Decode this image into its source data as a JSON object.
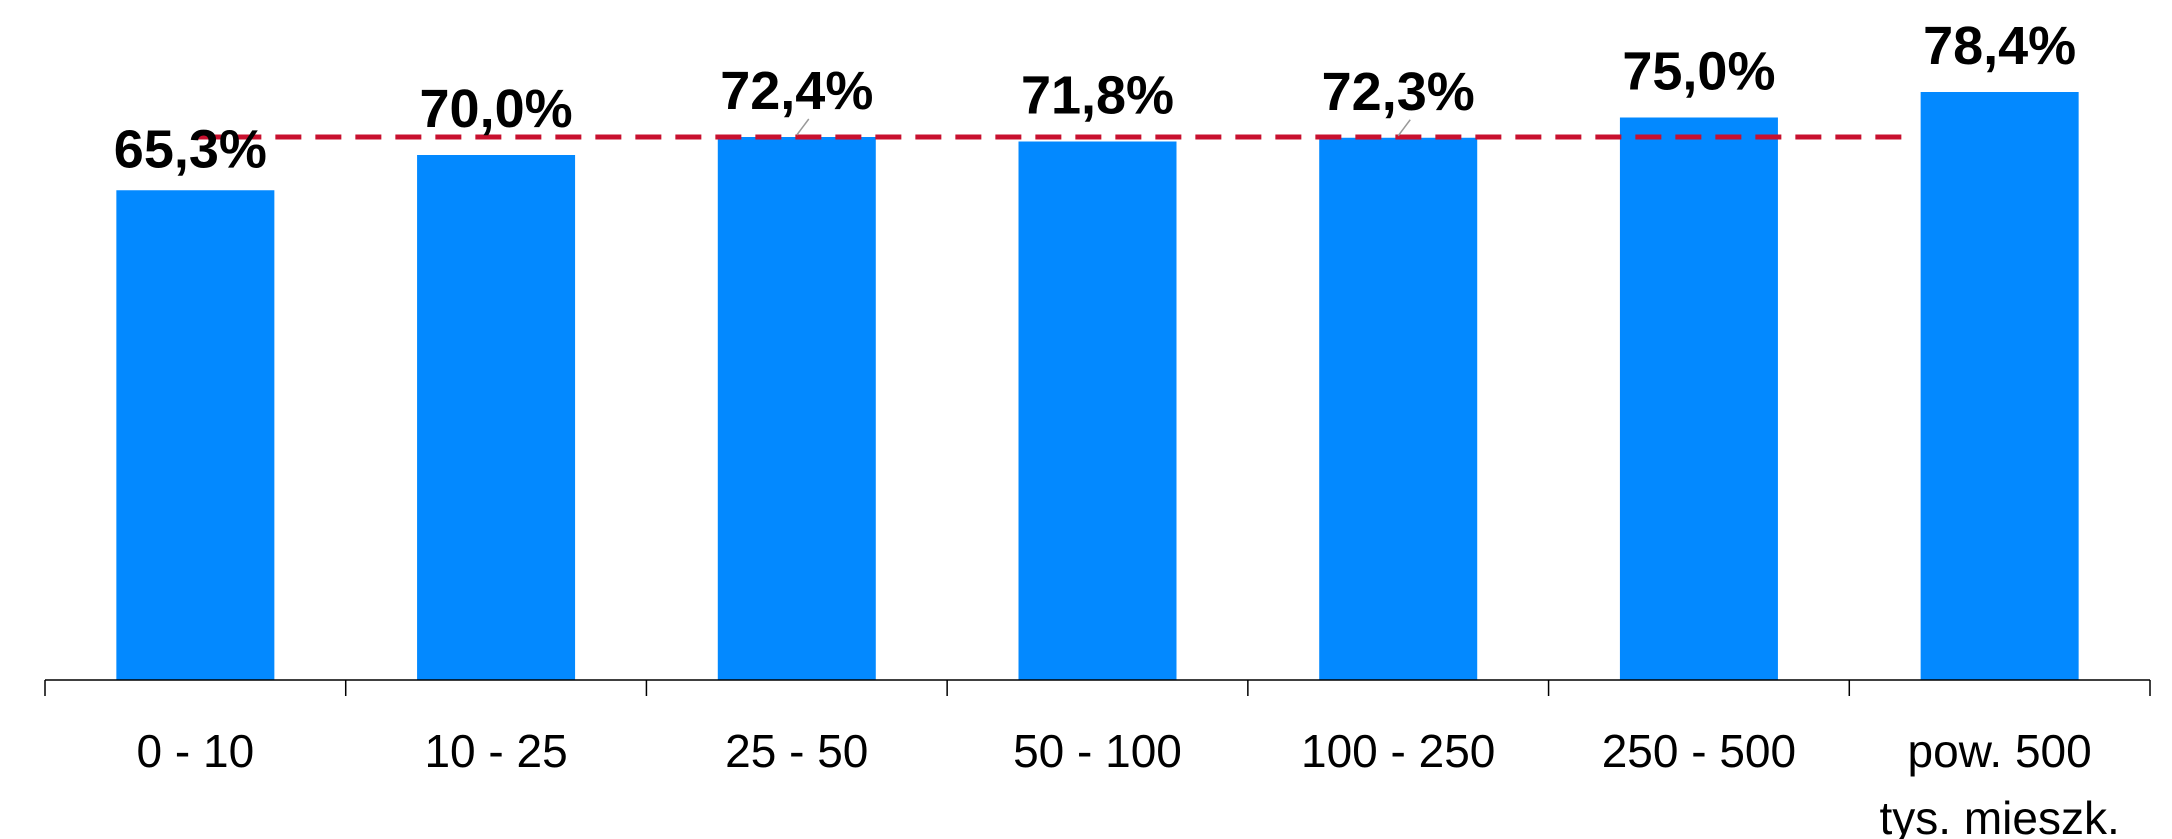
{
  "chart_data": {
    "type": "bar",
    "categories": [
      [
        "0 - 10"
      ],
      [
        "10 - 25"
      ],
      [
        "25 - 50"
      ],
      [
        "50 - 100"
      ],
      [
        "100 - 250"
      ],
      [
        "250 - 500"
      ],
      [
        "pow. 500",
        "tys. mieszk."
      ]
    ],
    "values": [
      65.3,
      70.0,
      72.4,
      71.8,
      72.3,
      75.0,
      78.4
    ],
    "data_labels": [
      "65,3%",
      "70,0%",
      "72,4%",
      "71,8%",
      "72,3%",
      "75,0%",
      "78,4%"
    ],
    "reference_line": {
      "value": 72.4,
      "style": "dashed"
    },
    "title": "",
    "xlabel": "",
    "ylabel": "",
    "ylim": [
      0,
      85
    ],
    "grid": false,
    "legend": "none",
    "colors": {
      "bar": "#0389FF",
      "reference_line": "#C8102E",
      "axis": "#000000",
      "leader": "#999999"
    }
  }
}
